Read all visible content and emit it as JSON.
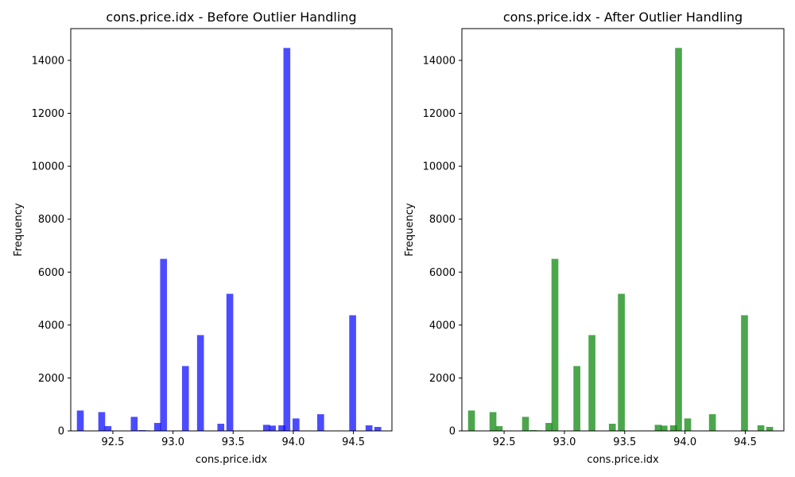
{
  "chart_data": [
    {
      "type": "bar",
      "title": "cons.price.idx - Before Outlier Handling",
      "xlabel": "cons.price.idx",
      "ylabel": "Frequency",
      "color": "#0000ff",
      "xlim": [
        92.15,
        94.82
      ],
      "ylim": [
        0,
        15200
      ],
      "xticks": [
        "92.5",
        "93.0",
        "93.5",
        "94.0",
        "94.5"
      ],
      "yticks": [
        "0",
        "2000",
        "4000",
        "6000",
        "8000",
        "10000",
        "12000",
        "14000"
      ],
      "bin_width": 0.057,
      "bins": [
        {
          "x": 92.201,
          "value": 770
        },
        {
          "x": 92.379,
          "value": 710
        },
        {
          "x": 92.431,
          "value": 180
        },
        {
          "x": 92.649,
          "value": 530
        },
        {
          "x": 92.713,
          "value": 30
        },
        {
          "x": 92.756,
          "value": 20
        },
        {
          "x": 92.843,
          "value": 300
        },
        {
          "x": 92.893,
          "value": 6500
        },
        {
          "x": 93.075,
          "value": 2450
        },
        {
          "x": 93.2,
          "value": 3620
        },
        {
          "x": 93.369,
          "value": 270
        },
        {
          "x": 93.444,
          "value": 5180
        },
        {
          "x": 93.749,
          "value": 230
        },
        {
          "x": 93.798,
          "value": 200
        },
        {
          "x": 93.876,
          "value": 210
        },
        {
          "x": 93.918,
          "value": 14470
        },
        {
          "x": 93.994,
          "value": 470
        },
        {
          "x": 94.199,
          "value": 630
        },
        {
          "x": 94.465,
          "value": 4370
        },
        {
          "x": 94.601,
          "value": 210
        },
        {
          "x": 94.674,
          "value": 150
        }
      ]
    },
    {
      "type": "bar",
      "title": "cons.price.idx - After Outlier Handling",
      "xlabel": "cons.price.idx",
      "ylabel": "Frequency",
      "color": "#008000",
      "xlim": [
        92.15,
        94.82
      ],
      "ylim": [
        0,
        15200
      ],
      "xticks": [
        "92.5",
        "93.0",
        "93.5",
        "94.0",
        "94.5"
      ],
      "yticks": [
        "0",
        "2000",
        "4000",
        "6000",
        "8000",
        "10000",
        "12000",
        "14000"
      ],
      "bin_width": 0.057,
      "bins": [
        {
          "x": 92.201,
          "value": 770
        },
        {
          "x": 92.379,
          "value": 710
        },
        {
          "x": 92.431,
          "value": 180
        },
        {
          "x": 92.649,
          "value": 530
        },
        {
          "x": 92.713,
          "value": 30
        },
        {
          "x": 92.756,
          "value": 20
        },
        {
          "x": 92.843,
          "value": 300
        },
        {
          "x": 92.893,
          "value": 6500
        },
        {
          "x": 93.075,
          "value": 2450
        },
        {
          "x": 93.2,
          "value": 3620
        },
        {
          "x": 93.369,
          "value": 270
        },
        {
          "x": 93.444,
          "value": 5180
        },
        {
          "x": 93.749,
          "value": 230
        },
        {
          "x": 93.798,
          "value": 200
        },
        {
          "x": 93.876,
          "value": 210
        },
        {
          "x": 93.918,
          "value": 14470
        },
        {
          "x": 93.994,
          "value": 470
        },
        {
          "x": 94.199,
          "value": 630
        },
        {
          "x": 94.465,
          "value": 4370
        },
        {
          "x": 94.601,
          "value": 210
        },
        {
          "x": 94.674,
          "value": 150
        }
      ]
    }
  ]
}
